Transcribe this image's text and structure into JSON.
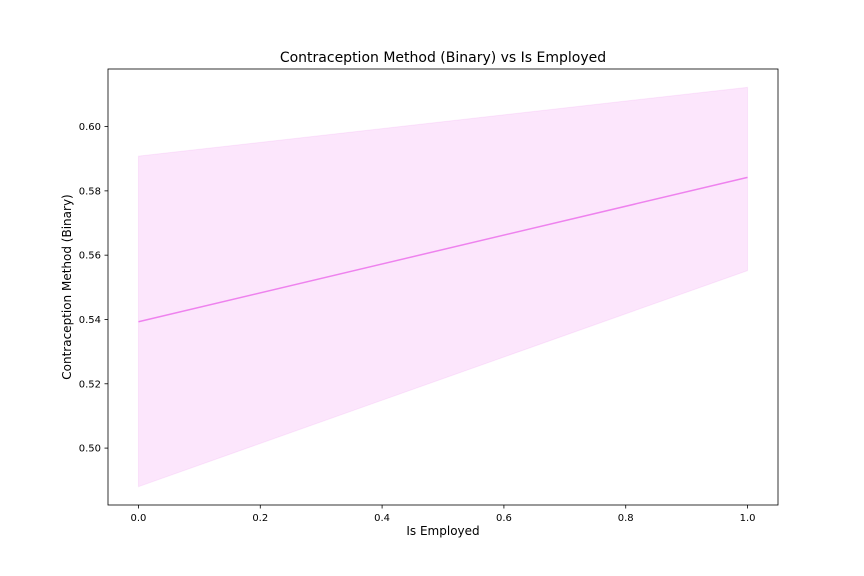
{
  "chart_data": {
    "type": "line",
    "title": "Contraception Method (Binary) vs Is Employed",
    "xlabel": "Is Employed",
    "ylabel": "Contraception Method (Binary)",
    "xlim": [
      -0.05,
      1.05
    ],
    "ylim": [
      0.4823,
      0.6179
    ],
    "x_ticks": [
      0.0,
      0.2,
      0.4,
      0.6,
      0.8,
      1.0
    ],
    "x_tick_labels": [
      "0.0",
      "0.2",
      "0.4",
      "0.6",
      "0.8",
      "1.0"
    ],
    "y_ticks": [
      0.5,
      0.52,
      0.54,
      0.56,
      0.58,
      0.6
    ],
    "y_tick_labels": [
      "0.50",
      "0.52",
      "0.54",
      "0.56",
      "0.58",
      "0.60"
    ],
    "grid": false,
    "series": [
      {
        "x": [
          0.0,
          1.0
        ],
        "y": [
          0.5393,
          0.5842
        ],
        "ci_lower": [
          0.488,
          0.5552
        ],
        "ci_upper": [
          0.5908,
          0.6122
        ],
        "color": "#ee82ee"
      }
    ]
  }
}
